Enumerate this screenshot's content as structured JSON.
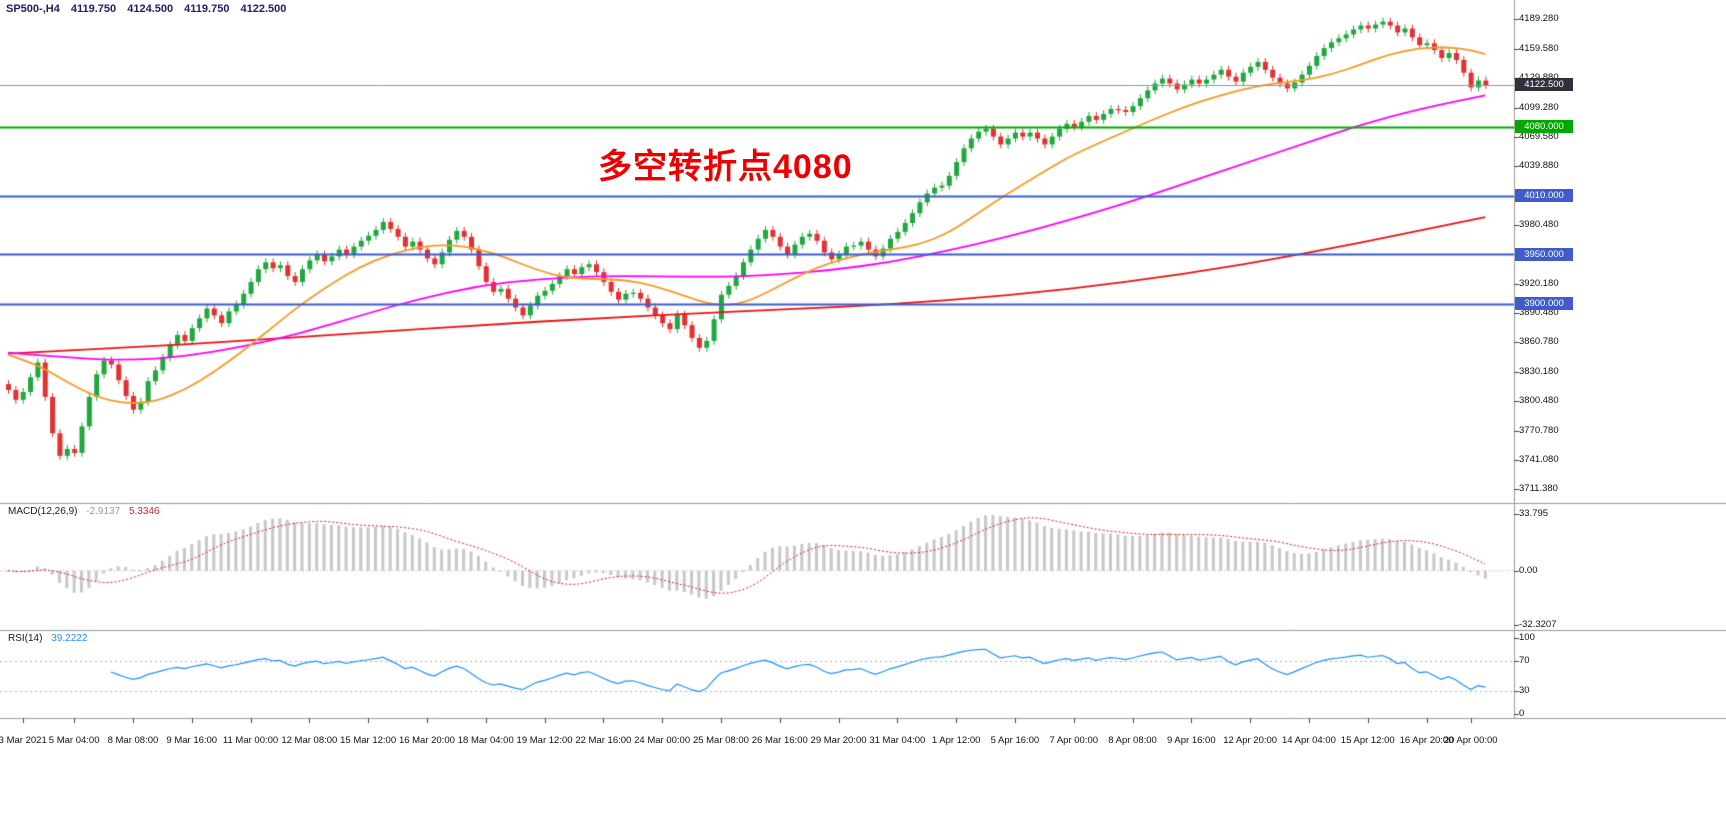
{
  "annotation": {
    "text": "多空转折点4080",
    "color": "#ee0000"
  },
  "chart_data": [
    {
      "type": "candlestick",
      "title": "SP500- H4 candlestick chart, 3 Mar 2021 - 20 Apr 2021",
      "header": {
        "symbol_period": "SP500-,H4",
        "open": "4119.750",
        "high": "4124.500",
        "low": "4119.750",
        "close": "4122.500"
      },
      "xlabel": "",
      "ylabel": "",
      "ylim": [
        3697,
        4209
      ],
      "first_open": 3818,
      "wick": 4,
      "up_color": "#20a83e",
      "down_color": "#e33030",
      "closes": [
        3812,
        3802,
        3810,
        3825,
        3840,
        3805,
        3768,
        3745,
        3752,
        3748,
        3775,
        3805,
        3828,
        3842,
        3838,
        3822,
        3806,
        3792,
        3800,
        3821,
        3832,
        3845,
        3858,
        3868,
        3862,
        3875,
        3885,
        3895,
        3888,
        3880,
        3892,
        3899,
        3910,
        3922,
        3935,
        3942,
        3936,
        3939,
        3928,
        3922,
        3935,
        3944,
        3950,
        3943,
        3948,
        3955,
        3950,
        3958,
        3964,
        3969,
        3975,
        3983,
        3976,
        3968,
        3958,
        3963,
        3955,
        3946,
        3940,
        3952,
        3965,
        3974,
        3968,
        3955,
        3938,
        3922,
        3912,
        3915,
        3905,
        3896,
        3888,
        3898,
        3908,
        3913,
        3920,
        3928,
        3935,
        3930,
        3937,
        3940,
        3932,
        3922,
        3912,
        3904,
        3910,
        3911,
        3905,
        3896,
        3888,
        3880,
        3874,
        3889,
        3878,
        3865,
        3855,
        3862,
        3884,
        3909,
        3918,
        3928,
        3942,
        3955,
        3966,
        3975,
        3968,
        3958,
        3950,
        3960,
        3968,
        3971,
        3964,
        3952,
        3945,
        3950,
        3958,
        3959,
        3963,
        3955,
        3948,
        3956,
        3966,
        3973,
        3982,
        3992,
        4003,
        4012,
        4018,
        4020,
        4030,
        4044,
        4058,
        4068,
        4075,
        4078,
        4070,
        4062,
        4068,
        4074,
        4070,
        4074,
        4068,
        4062,
        4070,
        4078,
        4083,
        4080,
        4085,
        4091,
        4087,
        4093,
        4098,
        4097,
        4095,
        4101,
        4109,
        4117,
        4124,
        4129,
        4124,
        4118,
        4123,
        4128,
        4124,
        4128,
        4133,
        4138,
        4131,
        4126,
        4135,
        4141,
        4146,
        4138,
        4130,
        4124,
        4119,
        4125,
        4133,
        4142,
        4152,
        4160,
        4166,
        4170,
        4174,
        4179,
        4183,
        4180,
        4184,
        4187,
        4183,
        4176,
        4180,
        4171,
        4163,
        4165,
        4158,
        4150,
        4155,
        4148,
        4135,
        4120,
        4127,
        4122.5
      ],
      "overlays": [
        {
          "name": "ma-slow",
          "color": "#ee1111",
          "points": [
            [
              0,
              3849
            ],
            [
              16,
              3855
            ],
            [
              32,
              3862
            ],
            [
              48,
              3870
            ],
            [
              64,
              3878
            ],
            [
              80,
              3885
            ],
            [
              96,
              3891
            ],
            [
              112,
              3896
            ],
            [
              128,
              3903
            ],
            [
              144,
              3914
            ],
            [
              160,
              3930
            ],
            [
              176,
              3950
            ],
            [
              192,
              3974
            ],
            [
              201,
              3988
            ]
          ]
        },
        {
          "name": "ma-mid",
          "color": "#ff00ff",
          "points": [
            [
              0,
              3850
            ],
            [
              8,
              3845
            ],
            [
              16,
              3842
            ],
            [
              24,
              3846
            ],
            [
              32,
              3856
            ],
            [
              40,
              3870
            ],
            [
              48,
              3888
            ],
            [
              56,
              3905
            ],
            [
              64,
              3918
            ],
            [
              72,
              3925
            ],
            [
              80,
              3928
            ],
            [
              88,
              3928
            ],
            [
              96,
              3927
            ],
            [
              104,
              3929
            ],
            [
              112,
              3934
            ],
            [
              120,
              3942
            ],
            [
              128,
              3954
            ],
            [
              136,
              3968
            ],
            [
              144,
              3984
            ],
            [
              152,
              4002
            ],
            [
              160,
              4022
            ],
            [
              168,
              4042
            ],
            [
              176,
              4062
            ],
            [
              184,
              4082
            ],
            [
              192,
              4098
            ],
            [
              201,
              4112
            ]
          ]
        },
        {
          "name": "ma-fast",
          "color": "#f59a23",
          "points": [
            [
              0,
              3848
            ],
            [
              4,
              3838
            ],
            [
              8,
              3820
            ],
            [
              12,
              3805
            ],
            [
              16,
              3798
            ],
            [
              20,
              3800
            ],
            [
              24,
              3812
            ],
            [
              28,
              3830
            ],
            [
              32,
              3852
            ],
            [
              36,
              3876
            ],
            [
              40,
              3900
            ],
            [
              44,
              3920
            ],
            [
              48,
              3938
            ],
            [
              52,
              3950
            ],
            [
              56,
              3958
            ],
            [
              60,
              3960
            ],
            [
              64,
              3956
            ],
            [
              68,
              3946
            ],
            [
              72,
              3934
            ],
            [
              76,
              3926
            ],
            [
              80,
              3925
            ],
            [
              84,
              3924
            ],
            [
              88,
              3918
            ],
            [
              92,
              3908
            ],
            [
              96,
              3898
            ],
            [
              100,
              3900
            ],
            [
              104,
              3914
            ],
            [
              108,
              3930
            ],
            [
              112,
              3942
            ],
            [
              116,
              3950
            ],
            [
              120,
              3955
            ],
            [
              124,
              3960
            ],
            [
              128,
              3972
            ],
            [
              132,
              3992
            ],
            [
              136,
              4012
            ],
            [
              140,
              4030
            ],
            [
              144,
              4048
            ],
            [
              148,
              4062
            ],
            [
              152,
              4075
            ],
            [
              156,
              4088
            ],
            [
              160,
              4100
            ],
            [
              164,
              4110
            ],
            [
              168,
              4118
            ],
            [
              172,
              4124
            ],
            [
              176,
              4127
            ],
            [
              180,
              4133
            ],
            [
              184,
              4143
            ],
            [
              188,
              4154
            ],
            [
              192,
              4160
            ],
            [
              196,
              4161
            ],
            [
              199,
              4158
            ],
            [
              201,
              4154
            ]
          ]
        }
      ],
      "levels": [
        {
          "label": "4122.500",
          "price": 4122.5,
          "line_color": "#8899aa",
          "badge_bg": "#30303c",
          "style": "current"
        },
        {
          "label": "4080.000",
          "price": 4080,
          "line_color": "#00a800",
          "badge_bg": "#00a800",
          "style": "level"
        },
        {
          "label": "4010.000",
          "price": 4010,
          "line_color": "#3f5ccc",
          "badge_bg": "#3f5ccc",
          "style": "level"
        },
        {
          "label": "3950.000",
          "price": 3950,
          "line_color": "#3f5ccc",
          "badge_bg": "#3f5ccc",
          "style": "level"
        },
        {
          "label": "3900.000",
          "price": 3900,
          "line_color": "#3f5ccc",
          "badge_bg": "#3f5ccc",
          "style": "level"
        }
      ],
      "price_ticks": [
        {
          "label": "4189.280",
          "value": 4189.28
        },
        {
          "label": "4159.580",
          "value": 4159.58
        },
        {
          "label": "4129.880",
          "value": 4129.88
        },
        {
          "label": "4099.280",
          "value": 4099.28
        },
        {
          "label": "4069.580",
          "value": 4069.58
        },
        {
          "label": "4039.880",
          "value": 4039.88
        },
        {
          "label": "3980.480",
          "value": 3980.48
        },
        {
          "label": "3920.180",
          "value": 3920.18
        },
        {
          "label": "3890.480",
          "value": 3890.48
        },
        {
          "label": "3860.780",
          "value": 3860.78
        },
        {
          "label": "3830.180",
          "value": 3830.18
        },
        {
          "label": "3800.480",
          "value": 3800.48
        },
        {
          "label": "3770.780",
          "value": 3770.78
        },
        {
          "label": "3741.080",
          "value": 3741.08
        },
        {
          "label": "3711.380",
          "value": 3711.38
        }
      ],
      "time_ticks": [
        {
          "bar": 2,
          "label": "3 Mar 2021"
        },
        {
          "bar": 9,
          "label": "5 Mar 04:00"
        },
        {
          "bar": 17,
          "label": "8 Mar 08:00"
        },
        {
          "bar": 25,
          "label": "9 Mar 16:00"
        },
        {
          "bar": 33,
          "label": "11 Mar 00:00"
        },
        {
          "bar": 41,
          "label": "12 Mar 08:00"
        },
        {
          "bar": 49,
          "label": "15 Mar 12:00"
        },
        {
          "bar": 57,
          "label": "16 Mar 20:00"
        },
        {
          "bar": 65,
          "label": "18 Mar 04:00"
        },
        {
          "bar": 73,
          "label": "19 Mar 12:00"
        },
        {
          "bar": 81,
          "label": "22 Mar 16:00"
        },
        {
          "bar": 89,
          "label": "24 Mar 00:00"
        },
        {
          "bar": 97,
          "label": "25 Mar 08:00"
        },
        {
          "bar": 105,
          "label": "26 Mar 16:00"
        },
        {
          "bar": 113,
          "label": "29 Mar 20:00"
        },
        {
          "bar": 121,
          "label": "31 Mar 04:00"
        },
        {
          "bar": 129,
          "label": "1 Apr 12:00"
        },
        {
          "bar": 137,
          "label": "5 Apr 16:00"
        },
        {
          "bar": 145,
          "label": "7 Apr 00:00"
        },
        {
          "bar": 153,
          "label": "8 Apr 08:00"
        },
        {
          "bar": 161,
          "label": "9 Apr 16:00"
        },
        {
          "bar": 169,
          "label": "12 Apr 20:00"
        },
        {
          "bar": 177,
          "label": "14 Apr 04:00"
        },
        {
          "bar": 185,
          "label": "15 Apr 12:00"
        },
        {
          "bar": 193,
          "label": "16 Apr 20:00"
        },
        {
          "bar": 199,
          "label": "20 Apr 00:00"
        }
      ]
    },
    {
      "type": "macd",
      "label": "MACD(12,26,9)",
      "current_main": "-2.9137",
      "current_signal": "5.3346",
      "params": [
        12,
        26,
        9
      ],
      "source": "chart_data.0.closes",
      "ylim": [
        -35,
        40
      ],
      "histogram_color": "#c8c8c8",
      "signal_color": "#e02020",
      "ticks": [
        {
          "label": "33.795",
          "value": 33.795
        },
        {
          "label": "0.00",
          "value": 0
        },
        {
          "label": "-32.3207",
          "value": -32.3207
        }
      ]
    },
    {
      "type": "rsi",
      "label": "RSI(14)",
      "current": "39.2222",
      "period": 14,
      "source": "chart_data.0.closes",
      "ylim": [
        -5,
        110
      ],
      "line_color": "#1e90ff",
      "levels": [
        70,
        30
      ],
      "ticks": [
        {
          "label": "100",
          "value": 100
        },
        {
          "label": "70",
          "value": 70
        },
        {
          "label": "30",
          "value": 30
        },
        {
          "label": "0",
          "value": 0
        }
      ]
    }
  ]
}
